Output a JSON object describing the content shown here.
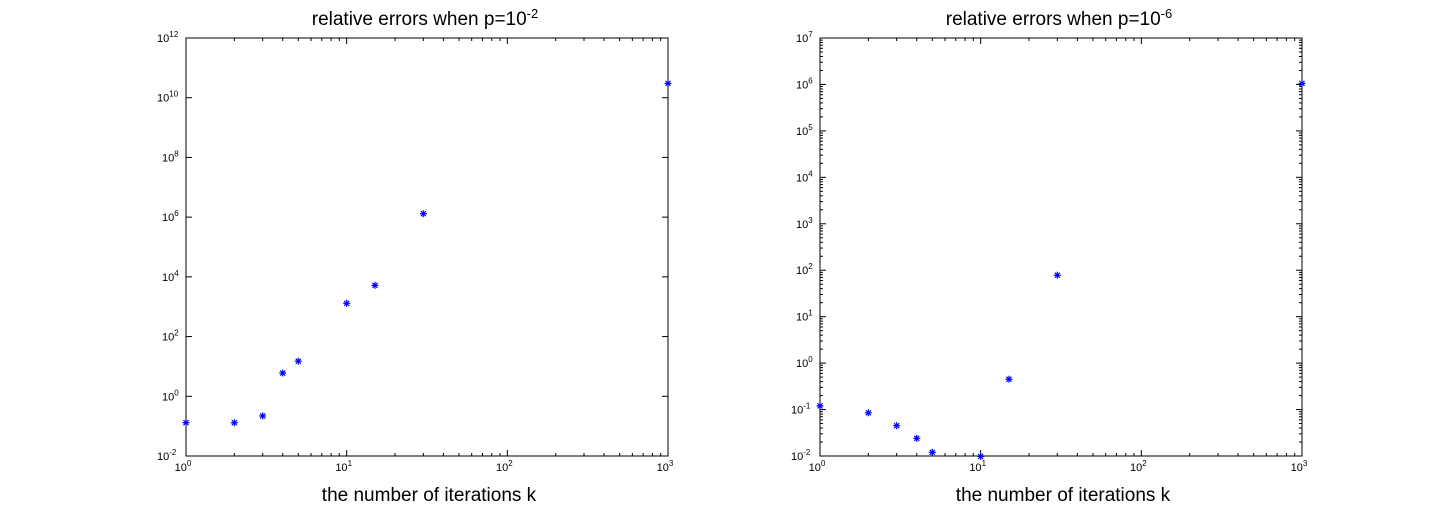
{
  "chart_data": [
    {
      "type": "scatter",
      "title": "relative errors when p=10",
      "title_exponent": "-2",
      "xlabel": "the number of iterations k",
      "ylabel": "",
      "xscale": "log",
      "yscale": "log",
      "xlim": [
        1,
        1000
      ],
      "ylim": [
        0.01,
        1000000000000
      ],
      "xticks": [
        {
          "base": "10",
          "exp": "0"
        },
        {
          "base": "10",
          "exp": "1"
        },
        {
          "base": "10",
          "exp": "2"
        },
        {
          "base": "10",
          "exp": "3"
        }
      ],
      "yticks": [
        {
          "base": "10",
          "exp": "-2"
        },
        {
          "base": "10",
          "exp": "0"
        },
        {
          "base": "10",
          "exp": "2"
        },
        {
          "base": "10",
          "exp": "4"
        },
        {
          "base": "10",
          "exp": "6"
        },
        {
          "base": "10",
          "exp": "8"
        },
        {
          "base": "10",
          "exp": "10"
        },
        {
          "base": "10",
          "exp": "12"
        }
      ],
      "grid": false,
      "marker": "*",
      "marker_color": "#0000ff",
      "series": [
        {
          "x": [
            1,
            2,
            3,
            4,
            5,
            10,
            15,
            30,
            1000
          ],
          "y": [
            0.13,
            0.13,
            0.22,
            6,
            15,
            1300,
            5200,
            1300000,
            30000000000
          ]
        }
      ]
    },
    {
      "type": "scatter",
      "title": "relative errors when p=10",
      "title_exponent": "-6",
      "xlabel": "the number of iterations k",
      "ylabel": "",
      "xscale": "log",
      "yscale": "log",
      "xlim": [
        1,
        1000
      ],
      "ylim": [
        0.01,
        10000000
      ],
      "xticks": [
        {
          "base": "10",
          "exp": "0"
        },
        {
          "base": "10",
          "exp": "1"
        },
        {
          "base": "10",
          "exp": "2"
        },
        {
          "base": "10",
          "exp": "3"
        }
      ],
      "yticks": [
        {
          "base": "10",
          "exp": "-2"
        },
        {
          "base": "10",
          "exp": "-1"
        },
        {
          "base": "10",
          "exp": "0"
        },
        {
          "base": "10",
          "exp": "1"
        },
        {
          "base": "10",
          "exp": "2"
        },
        {
          "base": "10",
          "exp": "3"
        },
        {
          "base": "10",
          "exp": "4"
        },
        {
          "base": "10",
          "exp": "5"
        },
        {
          "base": "10",
          "exp": "6"
        },
        {
          "base": "10",
          "exp": "7"
        }
      ],
      "grid": false,
      "marker": "*",
      "marker_color": "#0000ff",
      "series": [
        {
          "x": [
            1,
            2,
            3,
            4,
            5,
            10,
            15,
            30,
            1000
          ],
          "y": [
            0.12,
            0.085,
            0.045,
            0.024,
            0.012,
            0.0098,
            0.45,
            78,
            1050000
          ]
        }
      ]
    }
  ]
}
